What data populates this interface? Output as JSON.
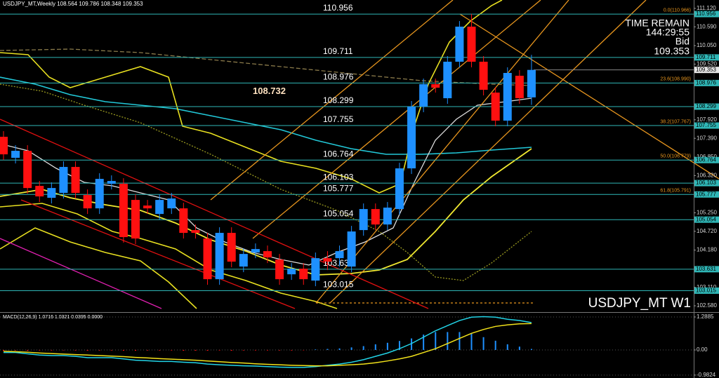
{
  "chart_data": [
    {
      "type": "candlestick",
      "title": "USDJPY_MT,Weekly 108.564 109.786 108.348 109.353",
      "ylim": [
        102.4,
        111.36
      ],
      "yticks": [
        {
          "value": 111.12,
          "label": "111.120"
        },
        {
          "value": 110.59,
          "label": "110.590"
        },
        {
          "value": 110.05,
          "label": "110.050"
        },
        {
          "value": 109.52,
          "label": "109.520"
        },
        {
          "value": 107.92,
          "label": "107.920"
        },
        {
          "value": 107.39,
          "label": "107.390"
        },
        {
          "value": 106.85,
          "label": "106.850"
        },
        {
          "value": 106.32,
          "label": "106.320"
        },
        {
          "value": 105.25,
          "label": "105.250"
        },
        {
          "value": 104.72,
          "label": "104.720"
        },
        {
          "value": 104.18,
          "label": "104.180"
        },
        {
          "value": 103.11,
          "label": "103.110"
        },
        {
          "value": 102.58,
          "label": "102.580"
        }
      ],
      "open": [
        107.433,
        106.829,
        107.03,
        106.023,
        105.681,
        105.822,
        106.567,
        105.761,
        105.378,
        106.083,
        106.083,
        105.62,
        105.459,
        105.217,
        105.378,
        105.378,
        104.754,
        104.512,
        103.344,
        104.674,
        103.707,
        104.11,
        104.15,
        103.908,
        103.485,
        103.646,
        103.304,
        103.948,
        103.948,
        103.707,
        104.754,
        105.358,
        104.915,
        105.358,
        106.526,
        108.299,
        108.943,
        108.54,
        109.588,
        110.595,
        109.588,
        108.702,
        107.896,
        109.185,
        108.564
      ],
      "high": [
        107.594,
        107.191,
        107.191,
        106.164,
        106.124,
        106.728,
        106.728,
        105.922,
        106.386,
        106.325,
        106.244,
        105.781,
        105.62,
        105.781,
        105.822,
        105.54,
        104.915,
        104.674,
        104.835,
        104.835,
        104.23,
        104.371,
        104.311,
        104.069,
        103.807,
        103.807,
        104.11,
        104.15,
        104.311,
        104.875,
        105.519,
        105.519,
        105.56,
        106.687,
        108.46,
        109.104,
        109.104,
        109.749,
        110.756,
        110.956,
        109.749,
        108.863,
        109.427,
        109.346,
        109.786
      ],
      "low": [
        106.768,
        106.667,
        105.801,
        105.56,
        105.519,
        105.661,
        105.661,
        105.217,
        105.217,
        105.922,
        104.392,
        104.351,
        105.217,
        105.056,
        105.217,
        104.512,
        104.512,
        103.183,
        103.183,
        103.687,
        103.546,
        103.948,
        103.807,
        103.183,
        103.324,
        103.183,
        103.143,
        103.606,
        103.707,
        103.546,
        104.593,
        104.754,
        104.754,
        105.197,
        106.365,
        108.138,
        108.702,
        108.379,
        109.427,
        109.427,
        108.621,
        107.735,
        107.735,
        108.379,
        108.348
      ],
      "close": [
        106.929,
        107.03,
        105.962,
        105.721,
        105.962,
        106.567,
        105.822,
        105.378,
        106.224,
        106.164,
        104.553,
        104.512,
        105.378,
        105.62,
        105.661,
        104.674,
        104.674,
        103.344,
        104.674,
        103.848,
        104.069,
        104.21,
        103.969,
        103.344,
        103.646,
        103.344,
        103.948,
        103.848,
        104.15,
        104.714,
        105.358,
        104.915,
        105.399,
        106.526,
        108.299,
        108.943,
        108.843,
        109.588,
        110.595,
        109.588,
        108.782,
        107.896,
        109.266,
        108.54,
        109.353
      ],
      "up_color": "#1e90ff",
      "down_color": "#ff1010",
      "levels": [
        110.956,
        109.711,
        108.976,
        108.299,
        107.755,
        106.764,
        106.103,
        105.777,
        105.054,
        103.631,
        103.015
      ],
      "level_color": "#2fb7b7",
      "fib": [
        {
          "value": 110.966,
          "label": "0.0(110.966)"
        },
        {
          "value": 108.99,
          "label": "23.6(108.990)"
        },
        {
          "value": 107.767,
          "label": "38.2(107.767)"
        },
        {
          "value": 106.779,
          "label": "50.0(106.779)"
        },
        {
          "value": 105.791,
          "label": "61.8(105.791)"
        }
      ],
      "annotation": 108.732,
      "bid": 109.353
    },
    {
      "type": "macd",
      "title": "MACD(12,26,9) 1.0716 1.0321 0.0395 0.0000",
      "ylim": [
        -1.096,
        1.425
      ],
      "yticks": [
        1.2885,
        {
          "value": 0,
          "label": "0.00"
        },
        -0.9824
      ],
      "histogram": [
        -0.03,
        -0.02,
        -0.03,
        -0.02,
        -0.02,
        -0.01,
        -0.02,
        -0.03,
        -0.02,
        -0.02,
        -0.03,
        -0.03,
        -0.02,
        -0.02,
        -0.02,
        -0.03,
        -0.03,
        -0.03,
        -0.02,
        -0.03,
        -0.02,
        -0.02,
        -0.02,
        -0.02,
        -0.02,
        -0.01,
        0.02,
        0.04,
        0.06,
        0.1,
        0.15,
        0.22,
        0.28,
        0.35,
        0.45,
        0.6,
        0.7,
        0.7,
        0.7,
        0.63,
        0.5,
        0.36,
        0.22,
        0.13,
        0.0395
      ],
      "pos_color": "#1e90ff",
      "neg_color": "#ff1010",
      "macd": [
        -0.1,
        -0.1,
        -0.15,
        -0.2,
        -0.22,
        -0.22,
        -0.25,
        -0.3,
        -0.3,
        -0.3,
        -0.35,
        -0.4,
        -0.42,
        -0.45,
        -0.45,
        -0.48,
        -0.5,
        -0.55,
        -0.58,
        -0.6,
        -0.62,
        -0.63,
        -0.65,
        -0.67,
        -0.68,
        -0.68,
        -0.65,
        -0.6,
        -0.55,
        -0.48,
        -0.38,
        -0.25,
        -0.12,
        0.05,
        0.25,
        0.5,
        0.75,
        0.95,
        1.15,
        1.28,
        1.3,
        1.28,
        1.2,
        1.15,
        1.07
      ],
      "macd_color": "#22d3e6",
      "signal": [
        -0.05,
        -0.07,
        -0.09,
        -0.12,
        -0.14,
        -0.16,
        -0.18,
        -0.2,
        -0.22,
        -0.24,
        -0.26,
        -0.29,
        -0.31,
        -0.34,
        -0.36,
        -0.38,
        -0.4,
        -0.43,
        -0.46,
        -0.49,
        -0.51,
        -0.54,
        -0.56,
        -0.58,
        -0.6,
        -0.61,
        -0.62,
        -0.62,
        -0.6,
        -0.58,
        -0.55,
        -0.5,
        -0.43,
        -0.35,
        -0.25,
        -0.1,
        0.05,
        0.25,
        0.45,
        0.65,
        0.8,
        0.92,
        0.98,
        1.02,
        1.03
      ],
      "signal_color": "#f2e21a"
    }
  ],
  "time_remain_label": "TIME REMAIN",
  "time_remain": "144:29:55",
  "bid_label": "Bid",
  "symbol_label": "USDJPY_MT W1"
}
